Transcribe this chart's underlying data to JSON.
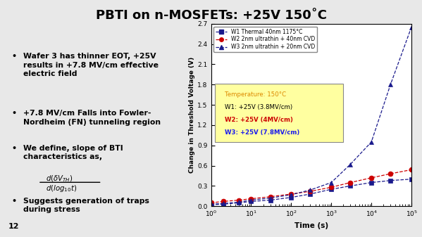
{
  "title": "PBTI on n-MOSFETs: +25V 150˚C",
  "title_fontsize": 13,
  "bg_color": "#e8e8e8",
  "plot_bg": "#ffffff",
  "xlabel": "Time (s)",
  "ylabel": "Change in Threshold Voltage (V)",
  "xlim_log": [
    0,
    5
  ],
  "ylim": [
    0.0,
    2.7
  ],
  "yticks": [
    0.0,
    0.3,
    0.6,
    0.9,
    1.2,
    1.5,
    1.8,
    2.1,
    2.4,
    2.7
  ],
  "w1_x": [
    1,
    2,
    5,
    10,
    30,
    100,
    300,
    1000,
    3000,
    10000,
    30000,
    100000
  ],
  "w1_y": [
    0.02,
    0.03,
    0.05,
    0.07,
    0.09,
    0.13,
    0.18,
    0.25,
    0.3,
    0.35,
    0.38,
    0.4
  ],
  "w1_color": "#1a1a8c",
  "w1_label": "W1 Thermal 40nm 1175°C",
  "w2_x": [
    1,
    2,
    5,
    10,
    30,
    100,
    300,
    1000,
    3000,
    10000,
    30000,
    100000
  ],
  "w2_y": [
    0.05,
    0.07,
    0.09,
    0.11,
    0.14,
    0.18,
    0.22,
    0.28,
    0.35,
    0.42,
    0.48,
    0.54
  ],
  "w2_color": "#cc0000",
  "w2_label": "W2 2nm ultrathin + 40nm CVD",
  "w3_x": [
    1,
    2,
    5,
    10,
    30,
    100,
    300,
    1000,
    3000,
    10000,
    30000,
    100000
  ],
  "w3_y": [
    0.03,
    0.04,
    0.06,
    0.09,
    0.12,
    0.17,
    0.24,
    0.35,
    0.62,
    0.95,
    1.8,
    2.65
  ],
  "w3_color": "#1a1a8c",
  "w3_label": "W3 2nm ultrathin + 20nm CVD",
  "annot_bg": "#ffffa0",
  "annot_lines": [
    {
      "text": "Temperature: 150°C",
      "color": "#dd8800",
      "bold": false
    },
    {
      "text": "W1: +25V (3.8MV/cm)",
      "color": "#000000",
      "bold": false
    },
    {
      "text": "W2: +25V (4MV/cm)",
      "color": "#cc0000",
      "bold": true
    },
    {
      "text": "W3: +25V (7.8MV/cm)",
      "color": "#1a1aee",
      "bold": true
    }
  ],
  "bullets": [
    "Wafer 3 has thinner EOT, +25V\nresults in +7.8 MV/cm effective\nelectric field",
    "+7.8 MV/cm Falls into Fowler-\nNordheim (FN) tunneling region",
    "We define, slope of BTI\ncharacteristics as,",
    "Suggests generation of traps\nduring stress"
  ],
  "page_number": "12"
}
